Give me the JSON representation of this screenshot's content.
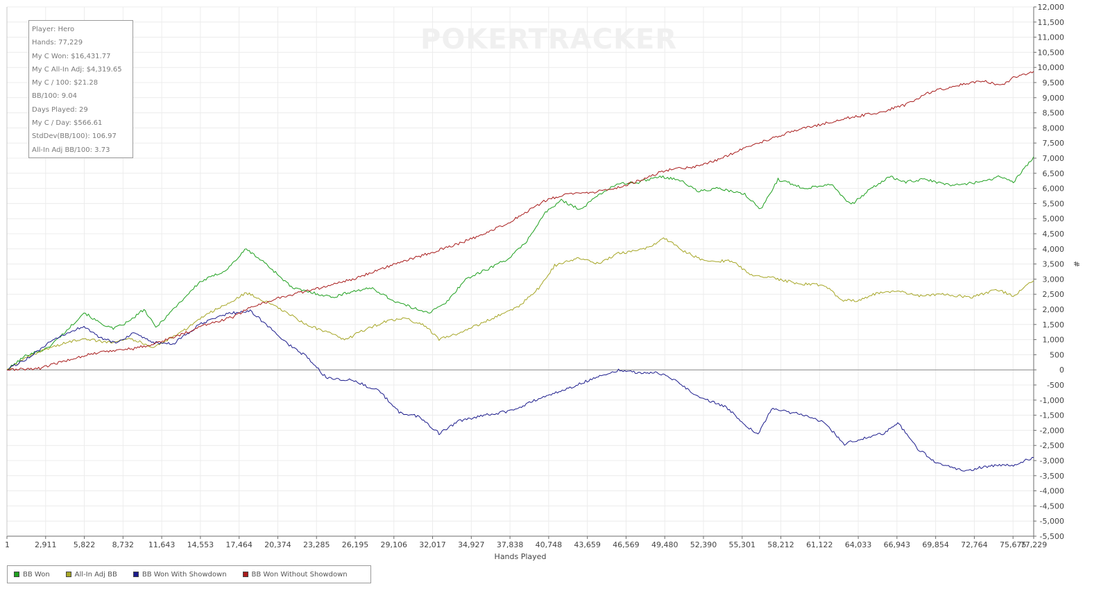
{
  "watermark": "POKERTRACKER",
  "stats": [
    "Player: Hero",
    "Hands: 77,229",
    "My C Won: $16,431.77",
    "My C All-In Adj: $4,319.65",
    "My C / 100: $21.28",
    "BB/100: 9.04",
    "Days Played: 29",
    "My C / Day: $566.61",
    "StdDev(BB/100): 106.97",
    "All-In Adj BB/100: 3.73"
  ],
  "chart_data": {
    "type": "line",
    "title": "",
    "xlabel": "Hands Played",
    "ylabel": "#",
    "xlim": [
      1,
      77229
    ],
    "ylim": [
      -5500,
      12000
    ],
    "x_ticks": [
      1,
      2911,
      5822,
      8732,
      11643,
      14553,
      17464,
      20374,
      23285,
      26195,
      29106,
      32017,
      34927,
      37838,
      40748,
      43659,
      46569,
      49480,
      52390,
      55301,
      58212,
      61122,
      64033,
      66943,
      69854,
      72764,
      75675,
      77229
    ],
    "x_tick_labels": [
      "1",
      "2,911",
      "5,822",
      "8,732",
      "11,643",
      "14,553",
      "17,464",
      "20,374",
      "23,285",
      "26,195",
      "29,106",
      "32,017",
      "34,927",
      "37,838",
      "40,748",
      "43,659",
      "46,569",
      "49,480",
      "52,390",
      "55,301",
      "58,212",
      "61,122",
      "64,033",
      "66,943",
      "69,854",
      "72,764",
      "75,675",
      "77,229"
    ],
    "y_ticks": [
      -5500,
      -5000,
      -4500,
      -4000,
      -3500,
      -3000,
      -2500,
      -2000,
      -1500,
      -1000,
      -500,
      0,
      500,
      1000,
      1500,
      2000,
      2500,
      3000,
      3500,
      4000,
      4500,
      5000,
      5500,
      6000,
      6500,
      7000,
      7500,
      8000,
      8500,
      9000,
      9500,
      10000,
      10500,
      11000,
      11500,
      12000
    ],
    "y_tick_labels": [
      "-5,500",
      "-5,000",
      "-4,500",
      "-4,000",
      "-3,500",
      "-3,000",
      "-2,500",
      "-2,000",
      "-1,500",
      "-1,000",
      "-500",
      "0",
      "500",
      "1,000",
      "1,500",
      "2,000",
      "2,500",
      "3,000",
      "3,500",
      "4,000",
      "4,500",
      "5,000",
      "5,500",
      "6,000",
      "6,500",
      "7,000",
      "7,500",
      "8,000",
      "8,500",
      "9,000",
      "9,500",
      "10,000",
      "10,500",
      "11,000",
      "11,500",
      "12,000"
    ],
    "grid": true,
    "legend_position": "bottom-left",
    "series": [
      {
        "name": "BB Won",
        "color": "#1fa01f",
        "x": [
          0,
          1500,
          3000,
          4500,
          5800,
          6800,
          8000,
          9200,
          10300,
          11200,
          12500,
          14500,
          16500,
          18000,
          19500,
          21500,
          23000,
          24500,
          26000,
          27500,
          29000,
          30500,
          31800,
          33000,
          34500,
          36000,
          37800,
          39000,
          40500,
          41700,
          43200,
          44500,
          46000,
          47500,
          49000,
          50500,
          52000,
          53500,
          55500,
          56700,
          58000,
          60000,
          62000,
          63500,
          65000,
          66500,
          67500,
          69000,
          71000,
          73000,
          74800,
          75700,
          77229
        ],
        "y": [
          0,
          500,
          700,
          1300,
          1900,
          1600,
          1350,
          1600,
          2000,
          1400,
          2000,
          2900,
          3300,
          4000,
          3500,
          2700,
          2550,
          2400,
          2600,
          2700,
          2300,
          2050,
          1900,
          2200,
          3000,
          3300,
          3700,
          4200,
          5200,
          5600,
          5300,
          5800,
          6150,
          6200,
          6400,
          6300,
          5900,
          6000,
          5800,
          5300,
          6300,
          6000,
          6150,
          5450,
          6000,
          6400,
          6200,
          6300,
          6100,
          6200,
          6400,
          6200,
          7050
        ]
      },
      {
        "name": "All-In Adj BB",
        "color": "#a6a626",
        "x": [
          0,
          1500,
          3000,
          4500,
          5800,
          7500,
          9200,
          11000,
          13000,
          15000,
          16500,
          18000,
          19500,
          21000,
          22500,
          24000,
          25500,
          27000,
          28500,
          30000,
          31500,
          32500,
          34500,
          36500,
          38500,
          40000,
          41200,
          43000,
          44500,
          46000,
          48000,
          49500,
          51000,
          52500,
          54500,
          56000,
          57500,
          59500,
          61500,
          62800,
          64000,
          65500,
          67000,
          68500,
          70500,
          72500,
          74500,
          75700,
          77229
        ],
        "y": [
          0,
          400,
          700,
          900,
          1050,
          900,
          1050,
          750,
          1200,
          1850,
          2150,
          2550,
          2250,
          1900,
          1500,
          1250,
          1000,
          1350,
          1600,
          1700,
          1450,
          1000,
          1300,
          1700,
          2100,
          2700,
          3450,
          3700,
          3500,
          3850,
          4000,
          4350,
          3900,
          3600,
          3600,
          3150,
          3050,
          2850,
          2800,
          2300,
          2300,
          2550,
          2600,
          2450,
          2500,
          2400,
          2650,
          2450,
          2950
        ]
      },
      {
        "name": "BB Won With Showdown",
        "color": "#1c1c8c",
        "x": [
          0,
          1000,
          2000,
          3000,
          4500,
          5800,
          7000,
          8200,
          9500,
          11000,
          12500,
          14500,
          16500,
          18300,
          19500,
          21000,
          22500,
          24000,
          26000,
          28000,
          29500,
          31000,
          32500,
          34000,
          36000,
          38000,
          40000,
          42000,
          44000,
          46000,
          47500,
          49000,
          50500,
          52000,
          54000,
          55500,
          56500,
          57500,
          59500,
          61500,
          63000,
          64500,
          66000,
          67000,
          68500,
          70000,
          72000,
          73500,
          75000,
          75700,
          77229
        ],
        "y": [
          0,
          250,
          500,
          850,
          1200,
          1450,
          1050,
          900,
          1200,
          900,
          850,
          1500,
          1850,
          1950,
          1500,
          900,
          450,
          -250,
          -350,
          -700,
          -1400,
          -1550,
          -2100,
          -1700,
          -1500,
          -1350,
          -950,
          -650,
          -300,
          0,
          -100,
          -100,
          -400,
          -900,
          -1200,
          -1800,
          -2150,
          -1300,
          -1450,
          -1750,
          -2450,
          -2250,
          -2100,
          -1750,
          -2600,
          -3100,
          -3350,
          -3200,
          -3150,
          -3150,
          -2900
        ]
      },
      {
        "name": "BB Won Without Showdown",
        "color": "#a81c1c",
        "x": [
          0,
          2500,
          4000,
          6000,
          8000,
          9500,
          11000,
          13000,
          15000,
          17000,
          18500,
          21000,
          23500,
          26000,
          28500,
          31000,
          33500,
          36000,
          38500,
          40500,
          42000,
          43500,
          45500,
          47500,
          49500,
          51500,
          53500,
          55500,
          57500,
          59500,
          61500,
          63500,
          65500,
          67500,
          69500,
          71500,
          73500,
          74800,
          75700,
          77229
        ],
        "y": [
          0,
          50,
          250,
          500,
          650,
          700,
          850,
          1150,
          1500,
          1750,
          2100,
          2450,
          2700,
          3000,
          3400,
          3750,
          4100,
          4500,
          5050,
          5600,
          5800,
          5850,
          5950,
          6250,
          6600,
          6700,
          6950,
          7350,
          7650,
          7950,
          8150,
          8350,
          8500,
          8750,
          9200,
          9400,
          9550,
          9400,
          9650,
          9870
        ]
      }
    ]
  }
}
